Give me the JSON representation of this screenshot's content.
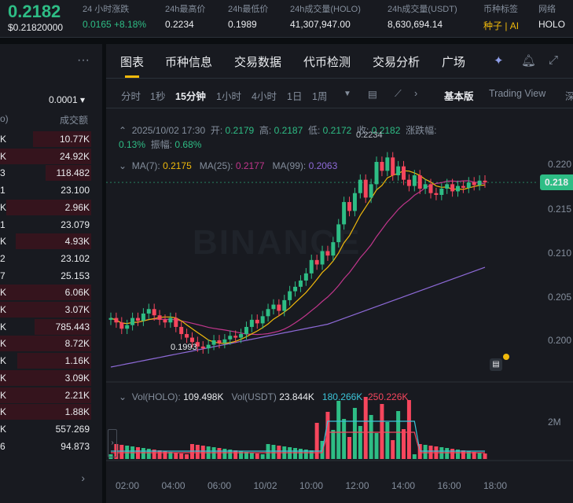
{
  "topbar": {
    "price": "0.2182",
    "price_usd": "$0.21820000",
    "stats": [
      {
        "label": "24 小时涨跌",
        "value": "0.0165 +8.18%",
        "color": "green"
      },
      {
        "label": "24h最高价",
        "value": "0.2234"
      },
      {
        "label": "24h最低价",
        "value": "0.1989"
      },
      {
        "label": "24h成交量(HOLO)",
        "value": "41,307,947.00"
      },
      {
        "label": "24h成交量(USDT)",
        "value": "8,630,694.14"
      },
      {
        "label": "币种标签",
        "value": "种子 | AI",
        "color": "gold"
      },
      {
        "label": "网络",
        "value": "HOLO"
      }
    ]
  },
  "orderbook": {
    "precision": "0.0001 ▾",
    "col_price": "o)",
    "col_total": "成交额",
    "rows": [
      {
        "p": "K",
        "v": "10.77K",
        "depth": 62
      },
      {
        "p": "K",
        "v": "24.92K",
        "depth": 100
      },
      {
        "p": "3",
        "v": "118.482",
        "depth": 48
      },
      {
        "p": "1",
        "v": "23.100",
        "depth": 0
      },
      {
        "p": "K",
        "v": "2.96K",
        "depth": 90
      },
      {
        "p": "1",
        "v": "23.079",
        "depth": 0
      },
      {
        "p": "K",
        "v": "4.93K",
        "depth": 80
      },
      {
        "p": "2",
        "v": "23.102",
        "depth": 0
      },
      {
        "p": "7",
        "v": "25.153",
        "depth": 0
      },
      {
        "p": "K",
        "v": "6.06K",
        "depth": 100
      },
      {
        "p": "K",
        "v": "3.07K",
        "depth": 100
      },
      {
        "p": "K",
        "v": "785.443",
        "depth": 60
      },
      {
        "p": "K",
        "v": "8.72K",
        "depth": 100
      },
      {
        "p": "K",
        "v": "1.16K",
        "depth": 78
      },
      {
        "p": "K",
        "v": "3.09K",
        "depth": 100
      },
      {
        "p": "K",
        "v": "2.21K",
        "depth": 100
      },
      {
        "p": "K",
        "v": "1.88K",
        "depth": 100
      },
      {
        "p": "K",
        "v": "557.269",
        "depth": 0
      },
      {
        "p": "6",
        "v": "94.873",
        "depth": 0
      }
    ],
    "more": "›"
  },
  "tabs": [
    "图表",
    "币种信息",
    "交易数据",
    "代币检测",
    "交易分析",
    "广场"
  ],
  "timeframes": [
    "分时",
    "1秒",
    "15分钟",
    "1小时",
    "4小时",
    "1日",
    "1周"
  ],
  "timeframe_active": "15分钟",
  "views": {
    "basic": "基本版",
    "tv": "Trading View",
    "depth": "深"
  },
  "ohlc": {
    "date": "2025/10/02 17:30",
    "open_l": "开:",
    "open": "0.2179",
    "high_l": "高:",
    "high": "0.2187",
    "low_l": "低:",
    "low": "0.2172",
    "close_l": "收:",
    "close": "0.2182",
    "chg_l": "涨跌幅:",
    "chg": "0.13%",
    "amp_l": "振幅:",
    "amp": "0.68%"
  },
  "ma": {
    "ma7_l": "MA(7):",
    "ma7": "0.2175",
    "ma25_l": "MA(25):",
    "ma25": "0.2177",
    "ma99_l": "MA(99):",
    "ma99": "0.2063"
  },
  "volume": {
    "holo_l": "Vol(HOLO):",
    "holo": "109.498K",
    "usdt_l": "Vol(USDT)",
    "usdt": "23.844K",
    "ma1": "180.266K",
    "ma2": "250.226K"
  },
  "price_badge": "0.218",
  "watermark": "BINANCE",
  "colors": {
    "up": "#2ebd85",
    "down": "#f6465d",
    "ma7": "#f0b90b",
    "ma25": "#c1368c",
    "ma99": "#8e6ad8",
    "accent": "#f0b90b"
  },
  "chart_data": {
    "type": "candlestick",
    "y_ticks": [
      "0.220",
      "0.215",
      "0.210",
      "0.205",
      "0.200"
    ],
    "vol_tick": "2M",
    "x_ticks": [
      "02:00",
      "04:00",
      "06:00",
      "10/02",
      "10:00",
      "12:00",
      "14:00",
      "16:00",
      "18:00"
    ],
    "high_label": "0.2234",
    "low_label": "0.1993"
  }
}
